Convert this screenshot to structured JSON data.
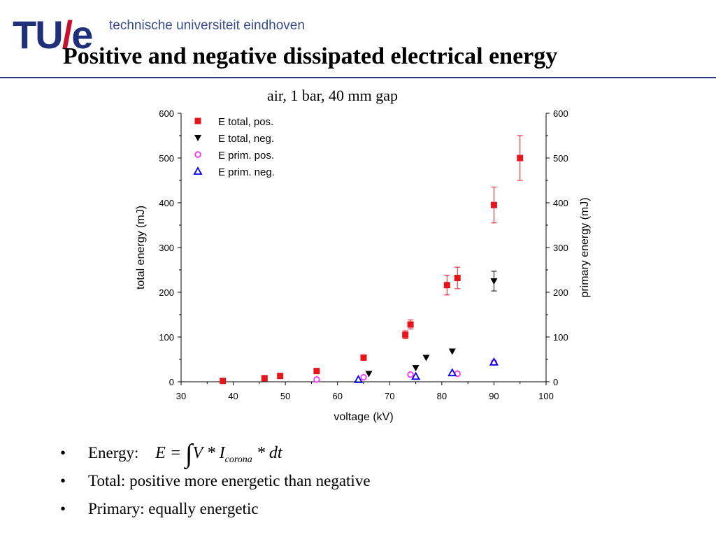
{
  "header": {
    "logo_mark_left": "TU",
    "logo_mark_slash": "/",
    "logo_mark_right": "e",
    "logo_text": "technische universiteit eindhoven",
    "title": "Positive and negative dissipated electrical energy",
    "subtitle": "air, 1 bar, 40 mm gap"
  },
  "bullets": {
    "energy_label": "Energy:",
    "energy_formula": {
      "lhs": "E =",
      "integral": "∫",
      "body": "V * I",
      "subscript": "corona",
      "tail": "* dt"
    },
    "total": "Total: positive more energetic than negative",
    "primary": "Primary: equally energetic"
  },
  "colors": {
    "logo": "#1f2f7a",
    "logo_slash": "#c8102e",
    "rule": "#2a3a82",
    "pos_total": "#e8141c",
    "neg_total": "#000000",
    "pos_prim": "#ff33ff",
    "neg_prim": "#0000ee"
  },
  "chart_data": {
    "type": "scatter",
    "xlabel": "voltage (kV)",
    "ylabel": "total energy (mJ)",
    "ylabel_right": "primary energy (mJ)",
    "xlim": [
      30,
      100
    ],
    "ylim": [
      0,
      600
    ],
    "ylim_right": [
      0,
      600
    ],
    "xticks": [
      30,
      40,
      50,
      60,
      70,
      80,
      90,
      100
    ],
    "yticks": [
      0,
      100,
      200,
      300,
      400,
      500,
      600
    ],
    "grid": false,
    "legend_position": "top-left",
    "series": [
      {
        "name": "E total, pos.",
        "marker": "square",
        "color": "#e8141c",
        "points": [
          {
            "x": 38,
            "y": 2
          },
          {
            "x": 46,
            "y": 8
          },
          {
            "x": 49,
            "y": 13
          },
          {
            "x": 56,
            "y": 24
          },
          {
            "x": 65,
            "y": 54
          },
          {
            "x": 73,
            "y": 105,
            "err": 9
          },
          {
            "x": 74,
            "y": 128,
            "err": 10
          },
          {
            "x": 81,
            "y": 216,
            "err": 22
          },
          {
            "x": 83,
            "y": 232,
            "err": 24
          },
          {
            "x": 90,
            "y": 395,
            "err": 40
          },
          {
            "x": 95,
            "y": 500,
            "err": 50
          }
        ]
      },
      {
        "name": "E total, neg.",
        "marker": "triangle-down",
        "color": "#000000",
        "points": [
          {
            "x": 66,
            "y": 18
          },
          {
            "x": 75,
            "y": 31
          },
          {
            "x": 77,
            "y": 54
          },
          {
            "x": 82,
            "y": 68
          },
          {
            "x": 90,
            "y": 225,
            "err": 22
          }
        ]
      },
      {
        "name": "E prim. pos.",
        "marker": "circle-open",
        "color": "#ff33ff",
        "points": [
          {
            "x": 56,
            "y": 5
          },
          {
            "x": 65,
            "y": 10
          },
          {
            "x": 74,
            "y": 16
          },
          {
            "x": 83,
            "y": 18
          },
          {
            "x": 90,
            "y": 43
          }
        ]
      },
      {
        "name": "E prim. neg.",
        "marker": "triangle-up-open",
        "color": "#0000ee",
        "points": [
          {
            "x": 64,
            "y": 5
          },
          {
            "x": 75,
            "y": 12
          },
          {
            "x": 82,
            "y": 20
          },
          {
            "x": 90,
            "y": 44
          }
        ]
      }
    ]
  }
}
